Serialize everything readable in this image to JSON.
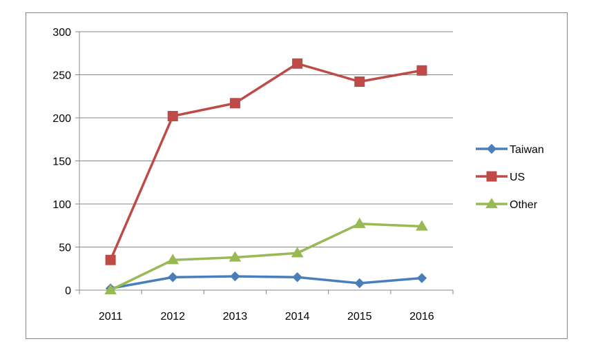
{
  "chart_data": {
    "type": "line",
    "title": "",
    "xlabel": "",
    "ylabel": "",
    "categories": [
      "2011",
      "2012",
      "2013",
      "2014",
      "2015",
      "2016"
    ],
    "ylim": [
      0,
      300
    ],
    "yticks": [
      "0",
      "50",
      "100",
      "150",
      "200",
      "250",
      "300"
    ],
    "grid": "horizontal",
    "legend_position": "right",
    "series": [
      {
        "name": "Taiwan",
        "color": "#4a7ebb",
        "marker": "diamond",
        "values": [
          2,
          15,
          16,
          15,
          8,
          14
        ]
      },
      {
        "name": "US",
        "color": "#be4b48",
        "marker": "square",
        "values": [
          35,
          202,
          217,
          263,
          242,
          255
        ]
      },
      {
        "name": "Other",
        "color": "#98b954",
        "marker": "triangle",
        "values": [
          0,
          35,
          38,
          43,
          77,
          74
        ]
      }
    ]
  }
}
